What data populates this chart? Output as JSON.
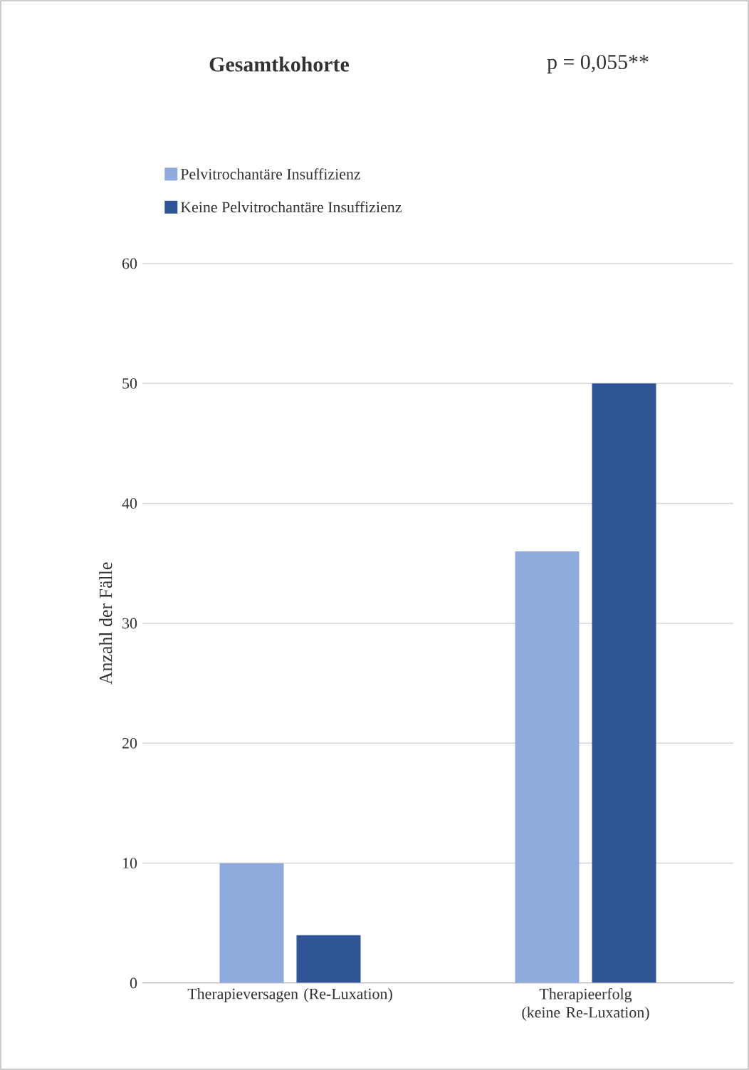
{
  "chart_data": {
    "type": "bar",
    "title": "Gesamtkohorte",
    "annotations": [
      "p = 0,055**"
    ],
    "ylabel": "Anzahl der Fälle",
    "categories": [
      "Therapieversagen (Re-Luxation)",
      "Therapieerfolg (keine Re-Luxation)"
    ],
    "series": [
      {
        "name": "Pelvitrochantäre Insuffizienz",
        "color": "#8faadc",
        "values": [
          10,
          36
        ]
      },
      {
        "name": "Keine Pelvitrochantäre Insuffizienz",
        "color": "#2f5597",
        "values": [
          4,
          50
        ]
      }
    ],
    "ylim": [
      0,
      60
    ],
    "yticks": [
      0,
      10,
      20,
      30,
      40,
      50,
      60
    ],
    "grid": "y",
    "legend": "top left"
  }
}
